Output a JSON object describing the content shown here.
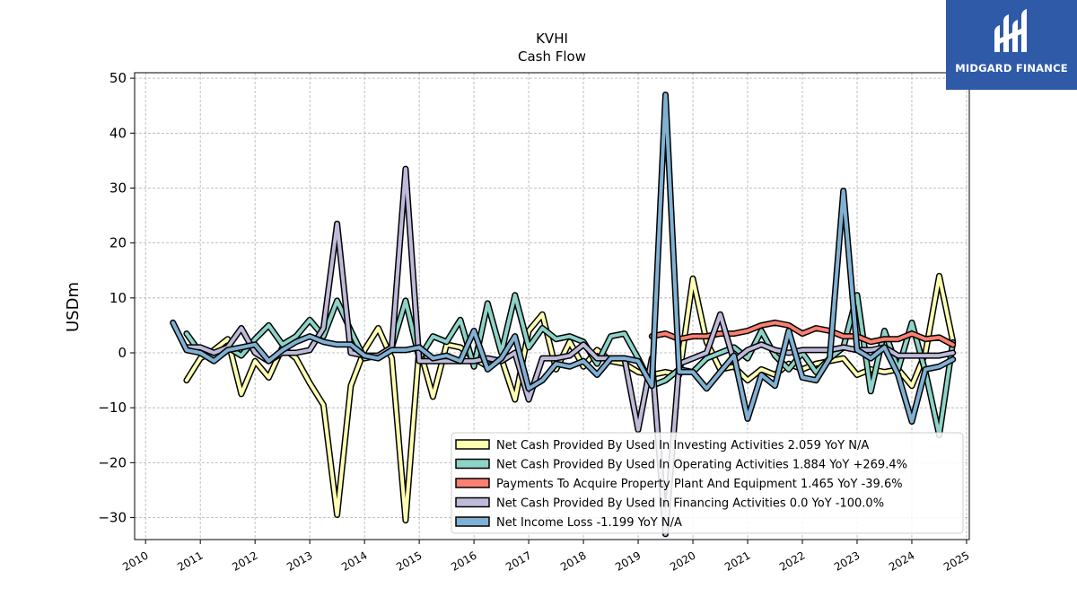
{
  "logo": {
    "text": "MIDGARD FINANCE"
  },
  "chart_data": {
    "type": "line",
    "title": "KVHI",
    "subtitle": "Cash Flow",
    "ylabel": "USDm",
    "xlabel": "",
    "ylim": [
      -34,
      51
    ],
    "xlim": [
      2009.8,
      2025.05
    ],
    "yticks": [
      -30,
      -20,
      -10,
      0,
      10,
      20,
      30,
      40,
      50
    ],
    "ytick_labels": [
      "−30",
      "−20",
      "−10",
      "0",
      "10",
      "20",
      "30",
      "40",
      "50"
    ],
    "xticks": [
      "2010",
      "2011",
      "2012",
      "2013",
      "2014",
      "2015",
      "2016",
      "2017",
      "2018",
      "2019",
      "2020",
      "2021",
      "2022",
      "2023",
      "2024",
      "2025"
    ],
    "grid": true,
    "legend_position": "lower-right",
    "series": [
      {
        "name": "Net Cash Provided By Used In Investing Activities  2.059 YoY N/A",
        "color": "#ffffb3",
        "x": [
          2010.75,
          2011.0,
          2011.25,
          2011.5,
          2011.75,
          2012.0,
          2012.25,
          2012.5,
          2012.75,
          2013.0,
          2013.25,
          2013.5,
          2013.75,
          2014.0,
          2014.25,
          2014.5,
          2014.75,
          2015.0,
          2015.25,
          2015.5,
          2015.75,
          2016.0,
          2016.25,
          2016.5,
          2016.75,
          2017.0,
          2017.25,
          2017.5,
          2017.75,
          2018.0,
          2018.25,
          2018.5,
          2018.75,
          2019.0,
          2019.25,
          2019.5,
          2019.75,
          2020.0,
          2020.25,
          2020.5,
          2020.75,
          2021.0,
          2021.25,
          2021.5,
          2021.75,
          2022.0,
          2022.25,
          2022.5,
          2022.75,
          2023.0,
          2023.25,
          2023.5,
          2023.75,
          2024.0,
          2024.25,
          2024.5,
          2024.75
        ],
        "values": [
          -5,
          -1,
          0.5,
          2.5,
          -7.5,
          -1.5,
          -4.5,
          1,
          -1,
          -5.5,
          -9.5,
          -29.5,
          -6,
          0.5,
          4.5,
          -1,
          -30.5,
          1,
          -8,
          1.5,
          1,
          -1,
          -2.5,
          -1,
          -8.5,
          4,
          7,
          -3,
          2,
          -2.5,
          0.5,
          -1.5,
          -2,
          -3.5,
          -4,
          -3.5,
          -4,
          13.5,
          2,
          -3,
          -2.5,
          -5,
          -3,
          -4,
          -2,
          -3,
          -2,
          -1.5,
          -1,
          -4,
          -3,
          -3.5,
          -3,
          -6,
          0,
          14,
          2.1
        ]
      },
      {
        "name": "Net Cash Provided By Used In Operating Activities  1.884 YoY +269.4%",
        "color": "#8dd3c7",
        "x": [
          2010.75,
          2011.0,
          2011.25,
          2011.5,
          2011.75,
          2012.0,
          2012.25,
          2012.5,
          2012.75,
          2013.0,
          2013.25,
          2013.5,
          2013.75,
          2014.0,
          2014.25,
          2014.5,
          2014.75,
          2015.0,
          2015.25,
          2015.5,
          2015.75,
          2016.0,
          2016.25,
          2016.5,
          2016.75,
          2017.0,
          2017.25,
          2017.5,
          2017.75,
          2018.0,
          2018.25,
          2018.5,
          2018.75,
          2019.0,
          2019.25,
          2019.5,
          2019.75,
          2020.0,
          2020.25,
          2020.5,
          2020.75,
          2021.0,
          2021.25,
          2021.5,
          2021.75,
          2022.0,
          2022.25,
          2022.5,
          2022.75,
          2023.0,
          2023.25,
          2023.5,
          2023.75,
          2024.0,
          2024.25,
          2024.5,
          2024.75
        ],
        "values": [
          3.5,
          0,
          -1,
          1,
          -0.5,
          2.5,
          5,
          1.5,
          3,
          6,
          3,
          9.5,
          4,
          -1,
          -0.5,
          1,
          9.5,
          -1,
          3,
          2,
          6,
          -2.5,
          9,
          0,
          10.5,
          1,
          4.5,
          2.5,
          3,
          2,
          -2,
          3,
          3.5,
          -1,
          -6,
          -5,
          -3,
          -3.5,
          -1,
          0,
          1,
          -1,
          4,
          -0.5,
          -3,
          0,
          -3.5,
          -1,
          1,
          10.5,
          -7,
          4,
          -3,
          5.5,
          -3.5,
          -15,
          1.9
        ]
      },
      {
        "name": "Payments To Acquire Property Plant And Equipment  1.465 YoY -39.6%",
        "color": "#fb8072",
        "x": [
          2019.25,
          2019.5,
          2019.75,
          2020.0,
          2020.25,
          2020.5,
          2020.75,
          2021.0,
          2021.25,
          2021.5,
          2021.75,
          2022.0,
          2022.25,
          2022.5,
          2022.75,
          2023.0,
          2023.25,
          2023.5,
          2023.75,
          2024.0,
          2024.25,
          2024.5,
          2024.75
        ],
        "values": [
          3,
          3.5,
          2.5,
          3,
          3,
          3.5,
          3.5,
          4,
          5,
          5.5,
          5,
          3.5,
          4.5,
          4,
          3,
          3,
          2,
          2.5,
          2.5,
          3.5,
          2.5,
          2.8,
          1.465
        ]
      },
      {
        "name": "Net Cash Provided By Used In Financing Activities  0.0 YoY -100.0%",
        "color": "#bebada",
        "x": [
          2010.75,
          2011.0,
          2011.25,
          2011.5,
          2011.75,
          2012.0,
          2012.25,
          2012.5,
          2012.75,
          2013.0,
          2013.25,
          2013.5,
          2013.75,
          2014.0,
          2014.25,
          2014.5,
          2014.75,
          2015.0,
          2015.25,
          2015.5,
          2015.75,
          2016.0,
          2016.25,
          2016.5,
          2016.75,
          2017.0,
          2017.25,
          2017.5,
          2017.75,
          2018.0,
          2018.25,
          2018.5,
          2018.75,
          2019.0,
          2019.25,
          2019.5,
          2019.75,
          2020.0,
          2020.25,
          2020.5,
          2020.75,
          2021.0,
          2021.25,
          2021.5,
          2021.75,
          2022.0,
          2022.25,
          2022.5,
          2022.75,
          2023.0,
          2023.25,
          2023.5,
          2023.75,
          2024.0,
          2024.25,
          2024.5,
          2024.75
        ],
        "values": [
          1,
          1,
          0,
          1,
          4.5,
          0,
          -1.5,
          0,
          0,
          0.5,
          4.5,
          23.5,
          0,
          -0.5,
          -0.5,
          1,
          33.5,
          -1.5,
          -1.5,
          -1.5,
          -1.5,
          -1.5,
          -1,
          -1.5,
          0,
          -8.5,
          -1,
          -1,
          -0.5,
          1.5,
          -1,
          -1,
          -1,
          -14,
          -1,
          -33,
          -2,
          -1,
          0,
          7,
          -1.5,
          0.5,
          1.5,
          0.5,
          0,
          0.5,
          0.5,
          0.5,
          1,
          0.5,
          0.5,
          1,
          -0.5,
          -0.5,
          -0.5,
          -0.5,
          0
        ]
      },
      {
        "name": "Net Income Loss  -1.199 YoY N/A",
        "color": "#80b1d3",
        "x": [
          2010.5,
          2010.75,
          2011.0,
          2011.25,
          2011.5,
          2011.75,
          2012.0,
          2012.25,
          2012.5,
          2012.75,
          2013.0,
          2013.25,
          2013.5,
          2013.75,
          2014.0,
          2014.25,
          2014.5,
          2014.75,
          2015.0,
          2015.25,
          2015.5,
          2015.75,
          2016.0,
          2016.25,
          2016.5,
          2016.75,
          2017.0,
          2017.25,
          2017.5,
          2017.75,
          2018.0,
          2018.25,
          2018.5,
          2018.75,
          2019.0,
          2019.25,
          2019.5,
          2019.75,
          2020.0,
          2020.25,
          2020.5,
          2020.75,
          2021.0,
          2021.25,
          2021.5,
          2021.75,
          2022.0,
          2022.25,
          2022.5,
          2022.75,
          2023.0,
          2023.25,
          2023.5,
          2023.75,
          2024.0,
          2024.25,
          2024.5,
          2024.75
        ],
        "values": [
          5.5,
          0.5,
          0,
          -1.5,
          0.5,
          1,
          1.5,
          -1.5,
          0.5,
          2,
          3,
          2,
          1.5,
          1.5,
          -0.5,
          -1,
          0.5,
          0.5,
          1,
          -1,
          -0.5,
          -1.5,
          4,
          -3,
          -1,
          3,
          -6.5,
          -5,
          -2,
          -2.5,
          -1.5,
          -4,
          -1,
          -1,
          -1.5,
          -6,
          47,
          -3.5,
          -3.5,
          -6.5,
          -3.5,
          -0.5,
          -12,
          -4,
          -6,
          4,
          -4.5,
          -5,
          -1,
          29.5,
          0.5,
          -1,
          1,
          -4,
          -12.5,
          -3,
          -2.5,
          -1.2
        ]
      }
    ]
  }
}
